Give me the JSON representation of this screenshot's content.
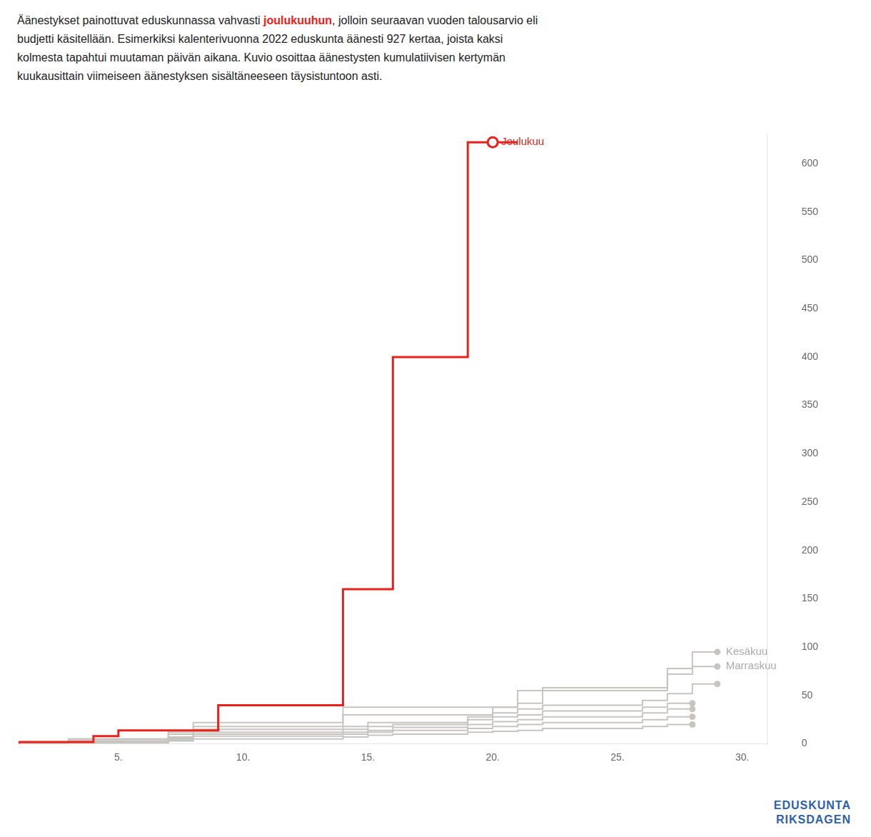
{
  "chart_data": {
    "type": "line",
    "subtitle": [
      [
        {
          "text": "Äänestykset painottuvat eduskunnassa vahvasti "
        },
        {
          "text": "joulukuuhun",
          "color": "#e8221a"
        },
        {
          "text": ", jolloin seuraavan vuoden talousarvio eli"
        }
      ],
      [
        {
          "text": "budjetti käsitellään. Esimerkiksi kalenterivuonna 2022 eduskunta äänesti 927 kertaa, joista kaksi"
        }
      ],
      [
        {
          "text": "kolmesta tapahtui muutaman päivän aikana. Kuvio osoittaa äänestysten kumulatiivisen kertymän"
        }
      ],
      [
        {
          "text": "kuukausittain viimeiseen äänestyksen sisältäneeseen täysistuntoon asti."
        }
      ]
    ],
    "xlim": [
      1,
      31
    ],
    "xticks": [
      {
        "value": 5,
        "label": "5."
      },
      {
        "value": 10,
        "label": "10."
      },
      {
        "value": 15,
        "label": "15."
      },
      {
        "value": 20,
        "label": "20."
      },
      {
        "value": 25,
        "label": "25."
      },
      {
        "value": 30,
        "label": "30."
      }
    ],
    "ylim": [
      0,
      630
    ],
    "yticks": [
      0,
      50,
      100,
      150,
      200,
      250,
      300,
      350,
      400,
      450,
      500,
      550,
      600
    ],
    "grid": false,
    "series": [
      {
        "x": [
          1,
          3,
          7,
          8,
          14,
          15,
          19,
          20,
          21,
          22,
          26,
          27,
          28,
          29
        ],
        "values": [
          0,
          1,
          3,
          7,
          15,
          18,
          22,
          28,
          32,
          36,
          40,
          45,
          52,
          62
        ],
        "color": "#c8c4c0",
        "line_style": "step",
        "marker": "circle"
      },
      {
        "x": [
          1,
          3,
          7,
          8,
          14,
          15,
          16,
          19,
          20,
          21,
          22,
          26,
          27,
          28
        ],
        "values": [
          0,
          1,
          3,
          6,
          12,
          15,
          18,
          20,
          25,
          28,
          30,
          34,
          38,
          42
        ],
        "color": "#c8c4c0",
        "line_style": "step",
        "marker": "circle"
      },
      {
        "x": [
          1,
          3,
          7,
          8,
          14,
          15,
          16,
          19,
          20,
          21,
          22,
          26,
          27,
          28
        ],
        "values": [
          0,
          1,
          2,
          5,
          10,
          12,
          14,
          17,
          20,
          23,
          25,
          28,
          32,
          36
        ],
        "color": "#c8c4c0",
        "line_style": "step",
        "marker": "circle"
      },
      {
        "x": [
          1,
          3,
          7,
          8,
          14,
          15,
          16,
          19,
          20,
          21,
          22,
          26,
          27,
          28
        ],
        "values": [
          0,
          1,
          2,
          4,
          8,
          10,
          12,
          14,
          16,
          18,
          20,
          22,
          25,
          28
        ],
        "color": "#c8c4c0",
        "line_style": "step",
        "marker": "circle"
      },
      {
        "x": [
          1,
          3,
          7,
          8,
          14,
          15,
          16,
          19,
          20,
          21,
          22,
          26,
          27,
          28
        ],
        "values": [
          0,
          0,
          1,
          3,
          5,
          7,
          9,
          10,
          12,
          13,
          14,
          16,
          18,
          20
        ],
        "color": "#c8c4c0",
        "line_style": "step",
        "marker": "circle"
      },
      {
        "x": [
          1,
          3,
          7,
          8,
          14,
          20,
          21,
          27,
          28,
          29
        ],
        "values": [
          0,
          2,
          5,
          10,
          18,
          30,
          38,
          55,
          78,
          95
        ],
        "color": "#c8c4c0",
        "line_style": "step",
        "marker": "circle"
      },
      {
        "x": [
          1,
          3,
          7,
          8,
          14,
          21,
          22,
          27,
          28,
          29
        ],
        "values": [
          0,
          2,
          5,
          12,
          22,
          38,
          42,
          58,
          72,
          80
        ],
        "color": "#c8c4c0",
        "line_style": "step",
        "marker": "circle"
      },
      {
        "x": [
          1,
          4,
          5,
          7,
          8,
          9,
          14,
          15,
          16,
          19,
          20,
          21
        ],
        "values": [
          0,
          2,
          8,
          14,
          14,
          14,
          40,
          160,
          160,
          400,
          622,
          622
        ],
        "color": "#e8221a",
        "line_style": "step",
        "marker": "open_circle"
      }
    ],
    "annotations": [
      {
        "text": "Joulukuu",
        "x": 20,
        "y": 622,
        "color": "#e8221a"
      },
      {
        "text": "Kesäkuu",
        "x": 29,
        "y": 95,
        "color": "#aaaaaa"
      },
      {
        "text": "Marraskuu",
        "x": 29,
        "y": 80,
        "color": "#aaaaaa"
      }
    ],
    "footer": [
      "EDUSKUNTA",
      "RIKSDAGEN"
    ],
    "footer_color": "#2e60a8"
  }
}
